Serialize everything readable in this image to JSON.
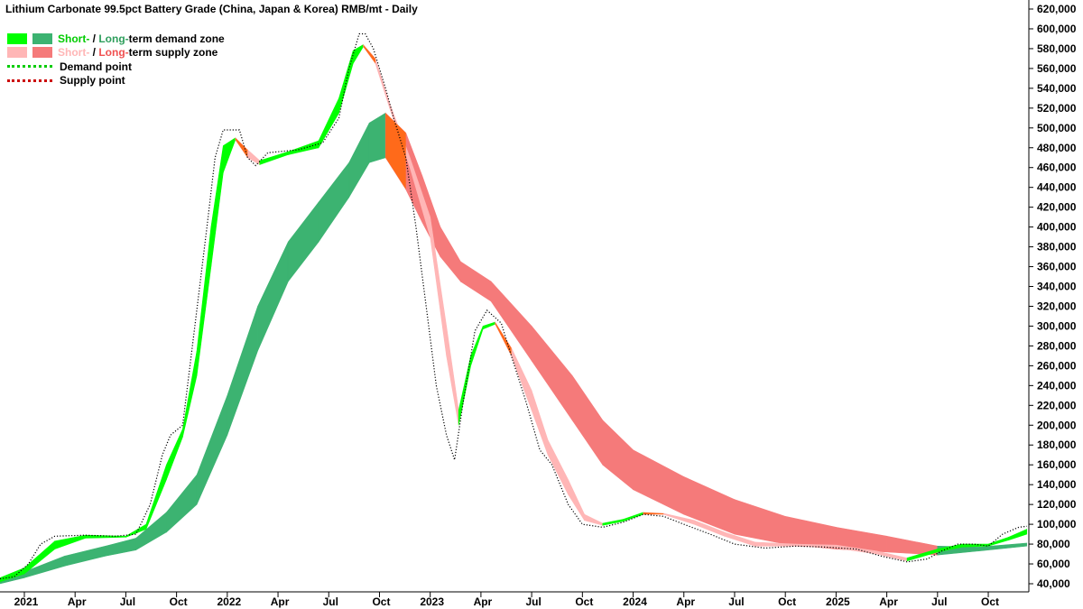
{
  "chart_data": {
    "type": "line",
    "title": "Lithium Carbonate 99.5pct Battery Grade (China, Japan & Korea) RMB/mt - Daily",
    "legend": {
      "demand_zone": {
        "short": "Short-",
        "sep": " / ",
        "long": "Long-",
        "suffix": "term demand zone"
      },
      "supply_zone": {
        "short": "Short-",
        "sep": " / ",
        "long": "Long-",
        "suffix": "term supply zone"
      },
      "demand_point": "Demand point",
      "supply_point": "Supply point"
    },
    "ylim": [
      40000,
      620000
    ],
    "xlim": [
      2020.88,
      2025.95
    ],
    "y_ticks": [
      {
        "value": 40000,
        "label": "40,000"
      },
      {
        "value": 60000,
        "label": "60,000"
      },
      {
        "value": 80000,
        "label": "80,000"
      },
      {
        "value": 100000,
        "label": "100,000"
      },
      {
        "value": 120000,
        "label": "120,000"
      },
      {
        "value": 140000,
        "label": "140,000"
      },
      {
        "value": 160000,
        "label": "160,000"
      },
      {
        "value": 180000,
        "label": "180,000"
      },
      {
        "value": 200000,
        "label": "200,000"
      },
      {
        "value": 220000,
        "label": "220,000"
      },
      {
        "value": 240000,
        "label": "240,000"
      },
      {
        "value": 260000,
        "label": "260,000"
      },
      {
        "value": 280000,
        "label": "280,000"
      },
      {
        "value": 300000,
        "label": "300,000"
      },
      {
        "value": 320000,
        "label": "320,000"
      },
      {
        "value": 340000,
        "label": "340,000"
      },
      {
        "value": 360000,
        "label": "360,000"
      },
      {
        "value": 380000,
        "label": "380,000"
      },
      {
        "value": 400000,
        "label": "400,000"
      },
      {
        "value": 420000,
        "label": "420,000"
      },
      {
        "value": 440000,
        "label": "440,000"
      },
      {
        "value": 460000,
        "label": "460,000"
      },
      {
        "value": 480000,
        "label": "480,000"
      },
      {
        "value": 500000,
        "label": "500,000"
      },
      {
        "value": 520000,
        "label": "520,000"
      },
      {
        "value": 540000,
        "label": "540,000"
      },
      {
        "value": 560000,
        "label": "560,000"
      },
      {
        "value": 580000,
        "label": "580,000"
      },
      {
        "value": 600000,
        "label": "600,000"
      },
      {
        "value": 620000,
        "label": "620,000"
      }
    ],
    "x_ticks": [
      {
        "value": 2021.0,
        "label": "2021",
        "bold": true
      },
      {
        "value": 2021.25,
        "label": "Apr",
        "bold": false
      },
      {
        "value": 2021.5,
        "label": "Jul",
        "bold": false
      },
      {
        "value": 2021.75,
        "label": "Oct",
        "bold": false
      },
      {
        "value": 2022.0,
        "label": "2022",
        "bold": true
      },
      {
        "value": 2022.25,
        "label": "Apr",
        "bold": false
      },
      {
        "value": 2022.5,
        "label": "Jul",
        "bold": false
      },
      {
        "value": 2022.75,
        "label": "Oct",
        "bold": false
      },
      {
        "value": 2023.0,
        "label": "2023",
        "bold": true
      },
      {
        "value": 2023.25,
        "label": "Apr",
        "bold": false
      },
      {
        "value": 2023.5,
        "label": "Jul",
        "bold": false
      },
      {
        "value": 2023.75,
        "label": "Oct",
        "bold": false
      },
      {
        "value": 2024.0,
        "label": "2024",
        "bold": true
      },
      {
        "value": 2024.25,
        "label": "Apr",
        "bold": false
      },
      {
        "value": 2024.5,
        "label": "Jul",
        "bold": false
      },
      {
        "value": 2024.75,
        "label": "Oct",
        "bold": false
      },
      {
        "value": 2025.0,
        "label": "2025",
        "bold": true
      },
      {
        "value": 2025.25,
        "label": "Apr",
        "bold": false
      },
      {
        "value": 2025.5,
        "label": "Jul",
        "bold": false
      },
      {
        "value": 2025.75,
        "label": "Oct",
        "bold": false
      }
    ],
    "colors": {
      "short_demand": "#00ff00",
      "long_demand": "#3cb371",
      "short_supply": "#ffb6b6",
      "long_supply": "#f57a7a",
      "transition": "#ff6a1a",
      "demand_point": "#00cc00",
      "supply_point": "#cc0000",
      "price": "#000000"
    },
    "series": [
      {
        "role": "price",
        "points": [
          [
            2020.88,
            45000
          ],
          [
            2020.95,
            47000
          ],
          [
            2021.02,
            60000
          ],
          [
            2021.08,
            80000
          ],
          [
            2021.15,
            88000
          ],
          [
            2021.3,
            89000
          ],
          [
            2021.45,
            88000
          ],
          [
            2021.55,
            90000
          ],
          [
            2021.62,
            120000
          ],
          [
            2021.68,
            170000
          ],
          [
            2021.72,
            190000
          ],
          [
            2021.78,
            200000
          ],
          [
            2021.84,
            300000
          ],
          [
            2021.9,
            400000
          ],
          [
            2021.94,
            470000
          ],
          [
            2021.98,
            498000
          ],
          [
            2022.06,
            498000
          ],
          [
            2022.1,
            470000
          ],
          [
            2022.14,
            462000
          ],
          [
            2022.2,
            475000
          ],
          [
            2022.35,
            478000
          ],
          [
            2022.47,
            485000
          ],
          [
            2022.55,
            510000
          ],
          [
            2022.6,
            560000
          ],
          [
            2022.65,
            595000
          ],
          [
            2022.68,
            595000
          ],
          [
            2022.72,
            580000
          ],
          [
            2022.78,
            540000
          ],
          [
            2022.82,
            510000
          ],
          [
            2022.88,
            470000
          ],
          [
            2022.93,
            400000
          ],
          [
            2022.98,
            320000
          ],
          [
            2023.03,
            240000
          ],
          [
            2023.08,
            190000
          ],
          [
            2023.12,
            165000
          ],
          [
            2023.16,
            220000
          ],
          [
            2023.22,
            295000
          ],
          [
            2023.28,
            316000
          ],
          [
            2023.35,
            303000
          ],
          [
            2023.4,
            270000
          ],
          [
            2023.47,
            225000
          ],
          [
            2023.54,
            175000
          ],
          [
            2023.6,
            160000
          ],
          [
            2023.68,
            120000
          ],
          [
            2023.75,
            100000
          ],
          [
            2023.85,
            97000
          ],
          [
            2023.95,
            102000
          ],
          [
            2024.05,
            110000
          ],
          [
            2024.15,
            108000
          ],
          [
            2024.25,
            100000
          ],
          [
            2024.38,
            90000
          ],
          [
            2024.5,
            80000
          ],
          [
            2024.65,
            76000
          ],
          [
            2024.8,
            78000
          ],
          [
            2024.95,
            77000
          ],
          [
            2025.1,
            75000
          ],
          [
            2025.22,
            68000
          ],
          [
            2025.35,
            62000
          ],
          [
            2025.45,
            65000
          ],
          [
            2025.52,
            73000
          ],
          [
            2025.6,
            80000
          ],
          [
            2025.68,
            80000
          ],
          [
            2025.75,
            78000
          ],
          [
            2025.82,
            90000
          ],
          [
            2025.9,
            97000
          ],
          [
            2025.94,
            98000
          ]
        ]
      },
      {
        "role": "short_band",
        "points": [
          [
            2020.88,
            42000,
            46000
          ],
          [
            2021.0,
            50000,
            56000
          ],
          [
            2021.15,
            75000,
            83000
          ],
          [
            2021.3,
            86000,
            89000
          ],
          [
            2021.5,
            87000,
            88000
          ],
          [
            2021.6,
            95000,
            100000
          ],
          [
            2021.7,
            145000,
            160000
          ],
          [
            2021.78,
            188000,
            196000
          ],
          [
            2021.85,
            250000,
            275000
          ],
          [
            2021.92,
            360000,
            400000
          ],
          [
            2021.98,
            455000,
            482000
          ],
          [
            2022.04,
            488000,
            490000
          ],
          [
            2022.1,
            470000,
            478000
          ],
          [
            2022.16,
            463000,
            467000
          ],
          [
            2022.3,
            473000,
            476000
          ],
          [
            2022.45,
            480000,
            487000
          ],
          [
            2022.55,
            515000,
            530000
          ],
          [
            2022.62,
            565000,
            578000
          ],
          [
            2022.67,
            582000,
            584000
          ],
          [
            2022.73,
            565000,
            570000
          ],
          [
            2022.8,
            520000,
            525000
          ],
          [
            2022.9,
            460000,
            470000
          ],
          [
            2023.0,
            390000,
            410000
          ],
          [
            2023.08,
            270000,
            300000
          ],
          [
            2023.14,
            200000,
            215000
          ],
          [
            2023.2,
            260000,
            270000
          ],
          [
            2023.26,
            297000,
            300000
          ],
          [
            2023.32,
            302000,
            304000
          ],
          [
            2023.4,
            270000,
            278000
          ],
          [
            2023.5,
            215000,
            235000
          ],
          [
            2023.58,
            170000,
            185000
          ],
          [
            2023.68,
            130000,
            145000
          ],
          [
            2023.76,
            104000,
            110000
          ],
          [
            2023.85,
            99000,
            101000
          ],
          [
            2023.95,
            103000,
            105000
          ],
          [
            2024.05,
            110000,
            112000
          ],
          [
            2024.15,
            110000,
            111000
          ],
          [
            2024.3,
            100000,
            104000
          ],
          [
            2024.45,
            88000,
            92000
          ],
          [
            2024.6,
            78000,
            82000
          ],
          [
            2024.8,
            78000,
            80000
          ],
          [
            2025.0,
            76000,
            79000
          ],
          [
            2025.2,
            70000,
            73000
          ],
          [
            2025.35,
            63000,
            66000
          ],
          [
            2025.5,
            72000,
            75000
          ],
          [
            2025.62,
            77000,
            80000
          ],
          [
            2025.75,
            78000,
            80000
          ],
          [
            2025.85,
            84000,
            87000
          ],
          [
            2025.94,
            90000,
            95000
          ]
        ]
      },
      {
        "role": "long_band",
        "points": [
          [
            2020.88,
            40000,
            42000
          ],
          [
            2021.0,
            46000,
            52000
          ],
          [
            2021.2,
            58000,
            68000
          ],
          [
            2021.4,
            68000,
            78000
          ],
          [
            2021.55,
            74000,
            86000
          ],
          [
            2021.7,
            92000,
            112000
          ],
          [
            2021.85,
            120000,
            150000
          ],
          [
            2022.0,
            190000,
            230000
          ],
          [
            2022.15,
            275000,
            320000
          ],
          [
            2022.3,
            345000,
            385000
          ],
          [
            2022.45,
            385000,
            425000
          ],
          [
            2022.6,
            430000,
            465000
          ],
          [
            2022.7,
            465000,
            505000
          ],
          [
            2022.78,
            470000,
            515000
          ],
          [
            2022.88,
            438000,
            495000
          ],
          [
            2022.96,
            405000,
            452000
          ],
          [
            2023.05,
            370000,
            400000
          ],
          [
            2023.15,
            345000,
            365000
          ],
          [
            2023.3,
            325000,
            345000
          ],
          [
            2023.5,
            265000,
            300000
          ],
          [
            2023.7,
            205000,
            250000
          ],
          [
            2023.85,
            160000,
            205000
          ],
          [
            2024.0,
            135000,
            175000
          ],
          [
            2024.25,
            110000,
            148000
          ],
          [
            2024.5,
            90000,
            125000
          ],
          [
            2024.75,
            80000,
            108000
          ],
          [
            2025.0,
            75000,
            97000
          ],
          [
            2025.25,
            72000,
            88000
          ],
          [
            2025.5,
            69000,
            78000
          ],
          [
            2025.7,
            73000,
            77000
          ],
          [
            2025.94,
            78000,
            81000
          ]
        ]
      }
    ]
  }
}
